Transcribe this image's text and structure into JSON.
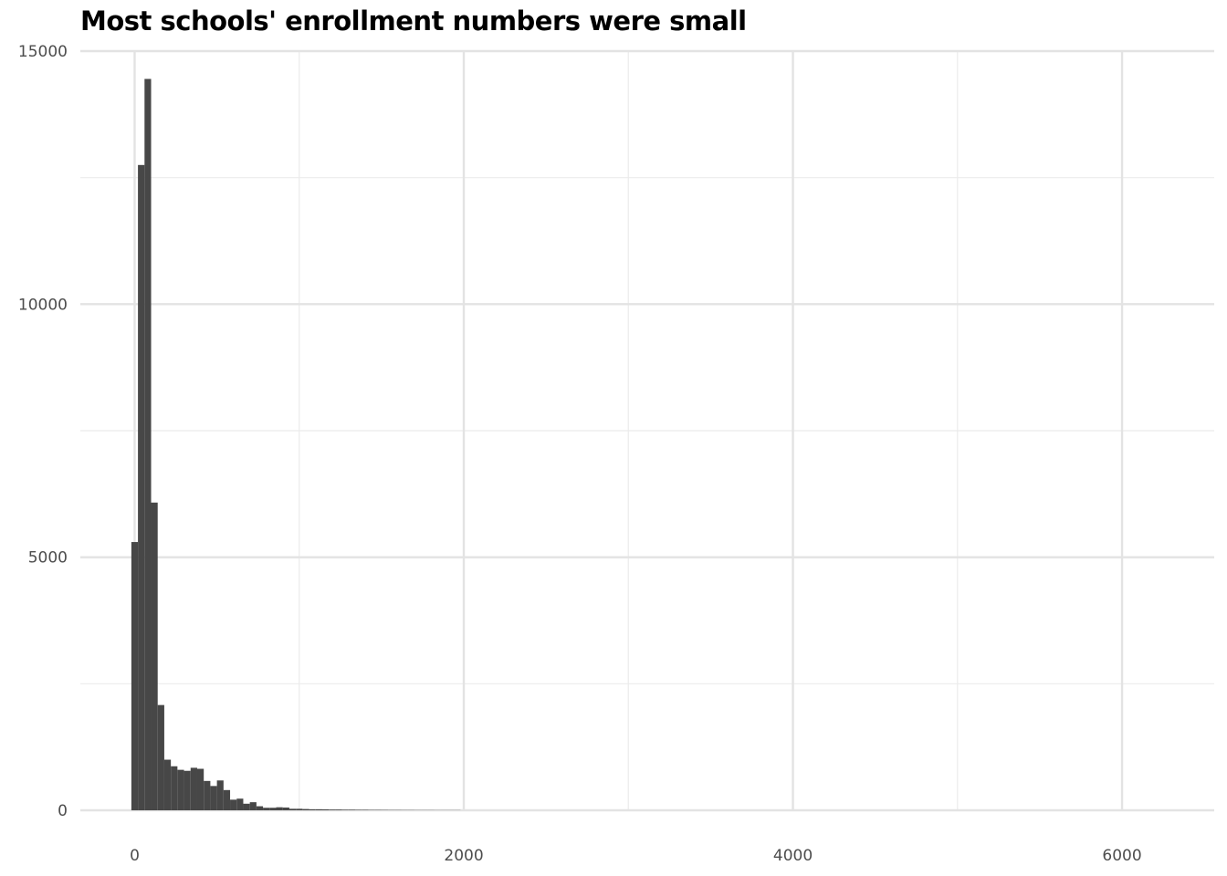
{
  "chart_data": {
    "type": "bar",
    "title": "Most schools' enrollment numbers were small",
    "xlabel": "",
    "ylabel": "",
    "xlim": [
      -330,
      6560
    ],
    "ylim": [
      0,
      15000
    ],
    "x_ticks": [
      0,
      2000,
      4000,
      6000
    ],
    "x_tick_labels": [
      "0",
      "2000",
      "4000",
      "6000"
    ],
    "y_ticks": [
      0,
      5000,
      10000,
      15000
    ],
    "y_tick_labels": [
      "0",
      "5000",
      "10000",
      "15000"
    ],
    "grid": true,
    "bar_color": "#474747",
    "bin_width": 40,
    "bin_start": -20,
    "values": [
      5300,
      12750,
      14450,
      6080,
      2080,
      1000,
      870,
      800,
      780,
      840,
      820,
      580,
      480,
      590,
      400,
      210,
      230,
      130,
      160,
      80,
      50,
      50,
      60,
      55,
      30,
      30,
      25,
      20,
      20,
      18,
      15,
      15,
      12,
      12,
      10,
      10,
      8,
      8,
      7,
      6,
      6,
      5,
      5,
      4,
      4,
      4,
      3,
      3,
      3,
      3
    ]
  }
}
